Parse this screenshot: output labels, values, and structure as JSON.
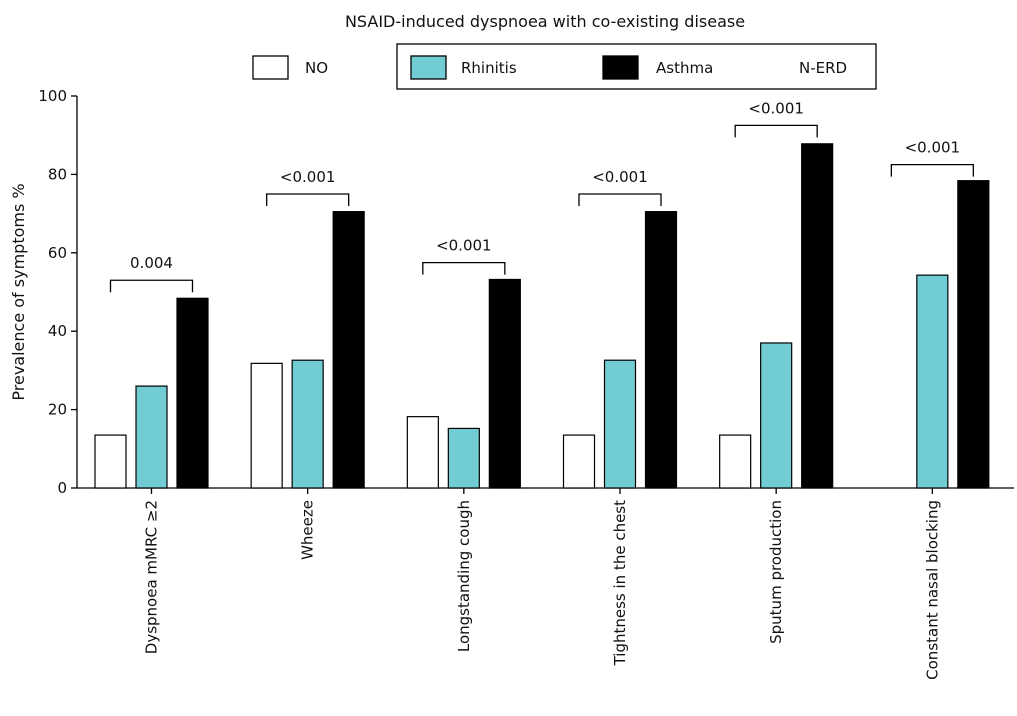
{
  "chart_data": {
    "type": "bar",
    "title": "NSAID-induced dyspnoea with co-existing disease",
    "ylabel": "Prevalence of symptoms %",
    "xlabel": "",
    "ylim": [
      0,
      100
    ],
    "yticks": [
      0,
      20,
      40,
      60,
      80,
      100
    ],
    "grid": false,
    "legend_position": "top",
    "categories": [
      "Dyspnoea mMRC ≥2",
      "Wheeze",
      "Longstanding cough",
      "Tightness in the chest",
      "Sputum production",
      "Constant nasal blocking"
    ],
    "legend": [
      {
        "name": "NO",
        "color": "#ffffff"
      },
      {
        "name": "Rhinitis",
        "color": "#72ccd3"
      },
      {
        "name": "Asthma",
        "color": "#000000"
      },
      {
        "name": "N-ERD",
        "color": ""
      }
    ],
    "series": [
      {
        "key": "no",
        "color": "#ffffff",
        "values": [
          13.5,
          31.8,
          18.2,
          13.5,
          13.5,
          0
        ]
      },
      {
        "key": "rhinitis",
        "color": "#72ccd3",
        "values": [
          26.0,
          32.6,
          15.2,
          32.6,
          37.0,
          54.3
        ]
      },
      {
        "key": "asthma",
        "color": "#000000",
        "values": [
          48.4,
          70.5,
          53.2,
          70.5,
          87.8,
          78.4
        ]
      }
    ],
    "annotations": [
      {
        "category": 0,
        "text": "0.004",
        "y": 53.0
      },
      {
        "category": 1,
        "text": "<0.001",
        "y": 75.0
      },
      {
        "category": 2,
        "text": "<0.001",
        "y": 57.5
      },
      {
        "category": 3,
        "text": "<0.001",
        "y": 75.0
      },
      {
        "category": 4,
        "text": "<0.001",
        "y": 92.5
      },
      {
        "category": 5,
        "text": "<0.001",
        "y": 82.5
      }
    ]
  }
}
